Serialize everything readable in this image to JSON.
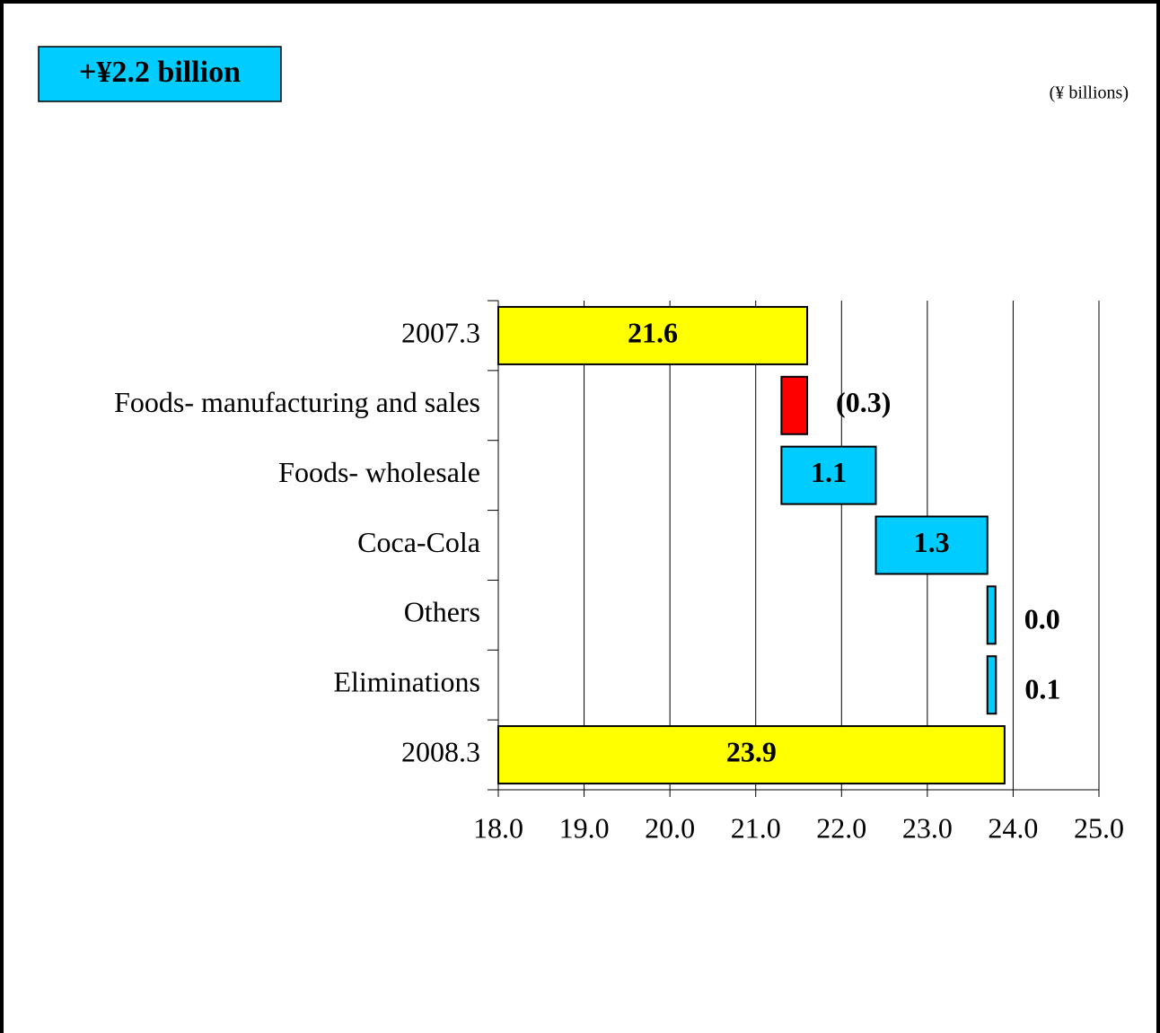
{
  "badge": "+¥2.2 billion",
  "chart_data": {
    "type": "waterfall",
    "unit": "(¥ billions)",
    "categories": [
      "2007.3",
      "Foods- manufacturing and sales",
      "Foods- wholesale",
      "Coca-Cola",
      "Others",
      "Eliminations",
      "2008.3"
    ],
    "values": [
      21.6,
      -0.3,
      1.1,
      1.3,
      0.0,
      0.1,
      23.9
    ],
    "value_labels": [
      "21.6",
      "(0.3)",
      "1.1",
      "1.3",
      "0.0",
      "0.1",
      "23.9"
    ],
    "total_color": "#ffff00",
    "increase_color": "#00ccff",
    "decrease_color": "#ff0000",
    "xlim": [
      18,
      25
    ],
    "xticks": [
      {
        "value": 18,
        "label": "18.0"
      },
      {
        "value": 19,
        "label": "19.0"
      },
      {
        "value": 20,
        "label": "20.0"
      },
      {
        "value": 21,
        "label": "21.0"
      },
      {
        "value": 22,
        "label": "22.0"
      },
      {
        "value": 23,
        "label": "23.0"
      },
      {
        "value": 24,
        "label": "24.0"
      },
      {
        "value": 25,
        "label": "25.0"
      }
    ],
    "grid": true
  }
}
